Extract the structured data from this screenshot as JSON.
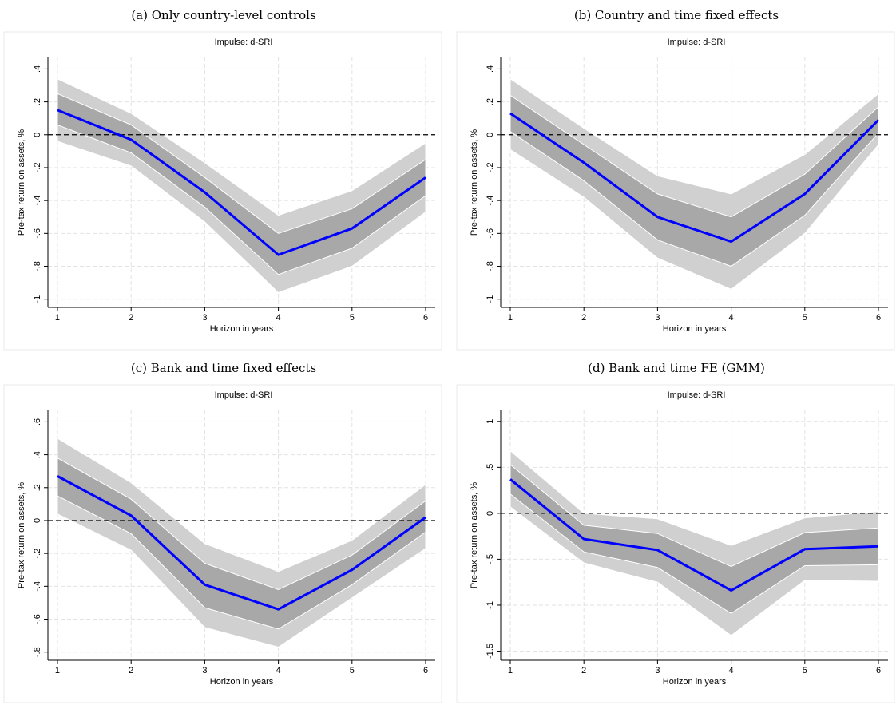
{
  "chart_data": [
    {
      "type": "line",
      "caption": "(a) Only country-level controls",
      "title": "Impulse: d-SRI",
      "ylabel": "Pre-tax return on assets, %",
      "xlabel": "Horizon in years",
      "x": [
        1,
        2,
        3,
        4,
        5,
        6
      ],
      "xlim": [
        0.87,
        6.13
      ],
      "xticks": [
        1,
        2,
        3,
        4,
        5,
        6
      ],
      "ylim": [
        -1.05,
        0.47
      ],
      "yticks": [
        {
          "value": 0.4,
          "label": ".4"
        },
        {
          "value": 0.2,
          "label": ".2"
        },
        0,
        {
          "value": -0.2,
          "label": "-.2"
        },
        {
          "value": -0.4,
          "label": "-.4"
        },
        {
          "value": -0.6,
          "label": "-.6"
        },
        {
          "value": -0.8,
          "label": "-.8"
        },
        -1
      ],
      "grid": true,
      "hline": 0,
      "color": "#0000ff",
      "values": [
        0.15,
        -0.03,
        -0.35,
        -0.73,
        -0.57,
        -0.26
      ],
      "bands": [
        {
          "color": "#d0d0d0",
          "upper": [
            0.34,
            0.13,
            -0.17,
            -0.49,
            -0.34,
            -0.05
          ],
          "lower": [
            -0.04,
            -0.19,
            -0.53,
            -0.96,
            -0.8,
            -0.47
          ]
        },
        {
          "color": "#a8a8a8",
          "upper": [
            0.25,
            0.06,
            -0.26,
            -0.6,
            -0.45,
            -0.15
          ],
          "lower": [
            0.06,
            -0.11,
            -0.44,
            -0.85,
            -0.69,
            -0.37
          ]
        }
      ]
    },
    {
      "type": "line",
      "caption": "(b) Country and time fixed effects",
      "title": "Impulse: d-SRI",
      "ylabel": "Pre-tax return on assets, %",
      "xlabel": "Horizon in years",
      "x": [
        1,
        2,
        3,
        4,
        5,
        6
      ],
      "xlim": [
        0.87,
        6.13
      ],
      "xticks": [
        1,
        2,
        3,
        4,
        5,
        6
      ],
      "ylim": [
        -1.05,
        0.47
      ],
      "yticks": [
        {
          "value": 0.4,
          "label": ".4"
        },
        {
          "value": 0.2,
          "label": ".2"
        },
        0,
        {
          "value": -0.2,
          "label": "-.2"
        },
        {
          "value": -0.4,
          "label": "-.4"
        },
        {
          "value": -0.6,
          "label": "-.6"
        },
        {
          "value": -0.8,
          "label": "-.8"
        },
        -1
      ],
      "grid": true,
      "hline": 0,
      "color": "#0000ff",
      "values": [
        0.13,
        -0.17,
        -0.5,
        -0.65,
        -0.36,
        0.09
      ],
      "bands": [
        {
          "color": "#d0d0d0",
          "upper": [
            0.34,
            0.04,
            -0.25,
            -0.36,
            -0.12,
            0.25
          ],
          "lower": [
            -0.09,
            -0.38,
            -0.75,
            -0.94,
            -0.6,
            -0.06
          ]
        },
        {
          "color": "#a8a8a8",
          "upper": [
            0.24,
            -0.06,
            -0.36,
            -0.5,
            -0.24,
            0.17
          ],
          "lower": [
            0.02,
            -0.28,
            -0.64,
            -0.8,
            -0.49,
            0.01
          ]
        }
      ]
    },
    {
      "type": "line",
      "caption": "(c) Bank and time fixed effects",
      "title": "Impulse: d-SRI",
      "ylabel": "Pre-tax return on assets, %",
      "xlabel": "Horizon in years",
      "x": [
        1,
        2,
        3,
        4,
        5,
        6
      ],
      "xlim": [
        0.87,
        6.13
      ],
      "xticks": [
        1,
        2,
        3,
        4,
        5,
        6
      ],
      "ylim": [
        -0.85,
        0.67
      ],
      "yticks": [
        {
          "value": 0.6,
          "label": ".6"
        },
        {
          "value": 0.4,
          "label": ".4"
        },
        {
          "value": 0.2,
          "label": ".2"
        },
        0,
        {
          "value": -0.2,
          "label": "-.2"
        },
        {
          "value": -0.4,
          "label": "-.4"
        },
        {
          "value": -0.6,
          "label": "-.6"
        },
        {
          "value": -0.8,
          "label": "-.8"
        }
      ],
      "grid": true,
      "hline": 0,
      "color": "#0000ff",
      "values": [
        0.27,
        0.03,
        -0.39,
        -0.54,
        -0.3,
        0.02
      ],
      "bands": [
        {
          "color": "#d0d0d0",
          "upper": [
            0.5,
            0.23,
            -0.14,
            -0.31,
            -0.12,
            0.22
          ],
          "lower": [
            0.04,
            -0.18,
            -0.65,
            -0.77,
            -0.47,
            -0.17
          ]
        },
        {
          "color": "#a8a8a8",
          "upper": [
            0.38,
            0.13,
            -0.26,
            -0.42,
            -0.21,
            0.12
          ],
          "lower": [
            0.15,
            -0.08,
            -0.53,
            -0.66,
            -0.39,
            -0.07
          ]
        }
      ]
    },
    {
      "type": "line",
      "caption": "(d) Bank and time FE (GMM)",
      "title": "Impulse: d-SRI",
      "ylabel": "Pre-tax return on assets, %",
      "xlabel": "Horizon in years",
      "x": [
        1,
        2,
        3,
        4,
        5,
        6
      ],
      "xlim": [
        0.87,
        6.13
      ],
      "xticks": [
        1,
        2,
        3,
        4,
        5,
        6
      ],
      "ylim": [
        -1.6,
        1.12
      ],
      "yticks": [
        1,
        {
          "value": 0.5,
          "label": ".5"
        },
        0,
        {
          "value": -0.5,
          "label": "-.5"
        },
        -1,
        -1.5
      ],
      "grid": true,
      "hline": 0,
      "color": "#0000ff",
      "values": [
        0.37,
        -0.28,
        -0.4,
        -0.84,
        -0.39,
        -0.36
      ],
      "bands": [
        {
          "color": "#d0d0d0",
          "upper": [
            0.68,
            0.0,
            -0.06,
            -0.35,
            -0.05,
            0.02
          ],
          "lower": [
            0.07,
            -0.54,
            -0.75,
            -1.33,
            -0.73,
            -0.74
          ]
        },
        {
          "color": "#a8a8a8",
          "upper": [
            0.53,
            -0.13,
            -0.22,
            -0.58,
            -0.21,
            -0.16
          ],
          "lower": [
            0.21,
            -0.42,
            -0.59,
            -1.09,
            -0.57,
            -0.56
          ]
        }
      ]
    }
  ]
}
